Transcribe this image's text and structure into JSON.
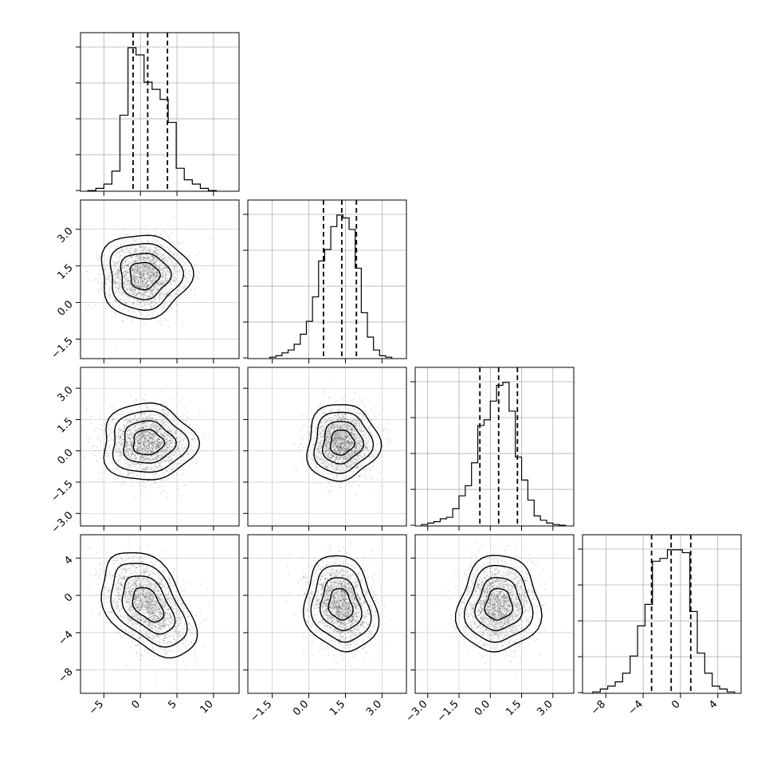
{
  "chart_data": {
    "type": "corner",
    "grid": true,
    "params": [
      {
        "xlim": [
          -8.2,
          13.5
        ],
        "xticks": [
          -5,
          0,
          5,
          10
        ],
        "xticklabels": [
          "−5",
          "0",
          "5",
          "10"
        ],
        "quantiles": [
          -1.0,
          1.0,
          3.7
        ],
        "hist_edges": [
          -7.2,
          -6.1,
          -5.0,
          -3.9,
          -2.8,
          -1.7,
          -0.6,
          0.5,
          1.6,
          2.7,
          3.8,
          4.9,
          6.0,
          7.1,
          8.2,
          9.3,
          10.4
        ],
        "hist_counts": [
          0.005,
          0.02,
          0.05,
          0.14,
          0.53,
          1.0,
          0.95,
          0.76,
          0.71,
          0.64,
          0.48,
          0.16,
          0.08,
          0.05,
          0.02,
          0.005
        ]
      },
      {
        "xlim": [
          -2.5,
          4.0
        ],
        "xticks": [
          -1.5,
          0.0,
          1.5,
          3.0
        ],
        "xticklabels": [
          "−1.5",
          "0.0",
          "1.5",
          "3.0"
        ],
        "ylim": [
          -2.3,
          4.2
        ],
        "yticks": [
          -1.5,
          0.0,
          1.5,
          3.0
        ],
        "yticklabels": [
          "−1.5",
          "0.0",
          "1.5",
          "3.0"
        ],
        "quantiles": [
          0.6,
          1.35,
          1.95
        ],
        "hist_edges": [
          -1.6,
          -1.35,
          -1.1,
          -0.85,
          -0.6,
          -0.35,
          -0.1,
          0.15,
          0.4,
          0.65,
          0.9,
          1.15,
          1.4,
          1.65,
          1.9,
          2.15,
          2.4,
          2.65,
          2.9,
          3.15,
          3.4
        ],
        "hist_counts": [
          0.01,
          0.02,
          0.04,
          0.06,
          0.1,
          0.17,
          0.26,
          0.43,
          0.68,
          0.76,
          0.92,
          1.0,
          0.98,
          0.9,
          0.63,
          0.32,
          0.15,
          0.06,
          0.02,
          0.01
        ]
      },
      {
        "xlim": [
          -3.6,
          4.0
        ],
        "xticks": [
          -3.0,
          -1.5,
          0.0,
          1.5,
          3.0
        ],
        "xticklabels": [
          "−3.0",
          "−1.5",
          "0.0",
          "1.5",
          "3.0"
        ],
        "ylim": [
          -3.6,
          4.0
        ],
        "yticks": [
          -3.0,
          -1.5,
          0.0,
          1.5,
          3.0
        ],
        "yticklabels": [
          "−3.0",
          "−1.5",
          "0.0",
          "1.5",
          "3.0"
        ],
        "quantiles": [
          -0.5,
          0.4,
          1.3
        ],
        "hist_edges": [
          -3.3,
          -3.0,
          -2.7,
          -2.4,
          -2.1,
          -1.8,
          -1.5,
          -1.2,
          -0.9,
          -0.6,
          -0.3,
          0.0,
          0.3,
          0.6,
          0.9,
          1.2,
          1.5,
          1.8,
          2.1,
          2.4,
          2.7,
          3.0,
          3.3,
          3.6
        ],
        "hist_counts": [
          0.01,
          0.02,
          0.03,
          0.05,
          0.06,
          0.12,
          0.21,
          0.28,
          0.44,
          0.7,
          0.74,
          0.87,
          0.98,
          1.0,
          0.8,
          0.48,
          0.32,
          0.18,
          0.07,
          0.04,
          0.02,
          0.01,
          0.005
        ]
      },
      {
        "xlim": [
          -10.5,
          6.5
        ],
        "xticks": [
          -8,
          -4,
          0,
          4
        ],
        "xticklabels": [
          "−8",
          "−4",
          "0",
          "4"
        ],
        "ylim": [
          -10.5,
          6.5
        ],
        "yticks": [
          -8,
          -4,
          0,
          4
        ],
        "yticklabels": [
          "−8",
          "−4",
          "0",
          "4"
        ],
        "quantiles": [
          -3.1,
          -1.0,
          1.1
        ],
        "hist_edges": [
          -9.4,
          -8.6,
          -7.8,
          -7.0,
          -6.2,
          -5.4,
          -4.6,
          -3.8,
          -3.0,
          -2.2,
          -1.4,
          -0.6,
          0.2,
          1.0,
          1.8,
          2.6,
          3.4,
          4.2,
          5.0,
          5.8
        ],
        "hist_counts": [
          0.01,
          0.03,
          0.05,
          0.08,
          0.14,
          0.26,
          0.47,
          0.62,
          0.92,
          0.94,
          1.0,
          1.0,
          0.98,
          0.57,
          0.28,
          0.14,
          0.05,
          0.03,
          0.01
        ]
      }
    ],
    "pairs": [
      {
        "row": 1,
        "col": 0,
        "center": [
          0.5,
          1.1
        ],
        "sd": [
          2.5,
          0.7
        ],
        "rho": 0.0,
        "peak": [
          -0.6,
          1.1
        ]
      },
      {
        "row": 2,
        "col": 0,
        "center": [
          1.0,
          0.4
        ],
        "sd": [
          2.6,
          0.75
        ],
        "rho": 0.0,
        "peak": [
          -0.6,
          0.5
        ]
      },
      {
        "row": 2,
        "col": 1,
        "center": [
          1.35,
          0.4
        ],
        "sd": [
          0.6,
          0.75
        ],
        "rho": 0.05,
        "peak": [
          1.5,
          0.4
        ]
      },
      {
        "row": 3,
        "col": 0,
        "center": [
          1.0,
          -1.0
        ],
        "sd": [
          2.6,
          2.3
        ],
        "rho": -0.45,
        "peak": [
          -0.6,
          0.4
        ]
      },
      {
        "row": 3,
        "col": 1,
        "center": [
          1.3,
          -1.0
        ],
        "sd": [
          0.6,
          2.1
        ],
        "rho": -0.15,
        "peak": [
          1.4,
          -1.2
        ]
      },
      {
        "row": 3,
        "col": 2,
        "center": [
          0.4,
          -1.0
        ],
        "sd": [
          0.8,
          2.1
        ],
        "rho": 0.05,
        "peak": [
          0.4,
          -0.6
        ]
      }
    ]
  }
}
